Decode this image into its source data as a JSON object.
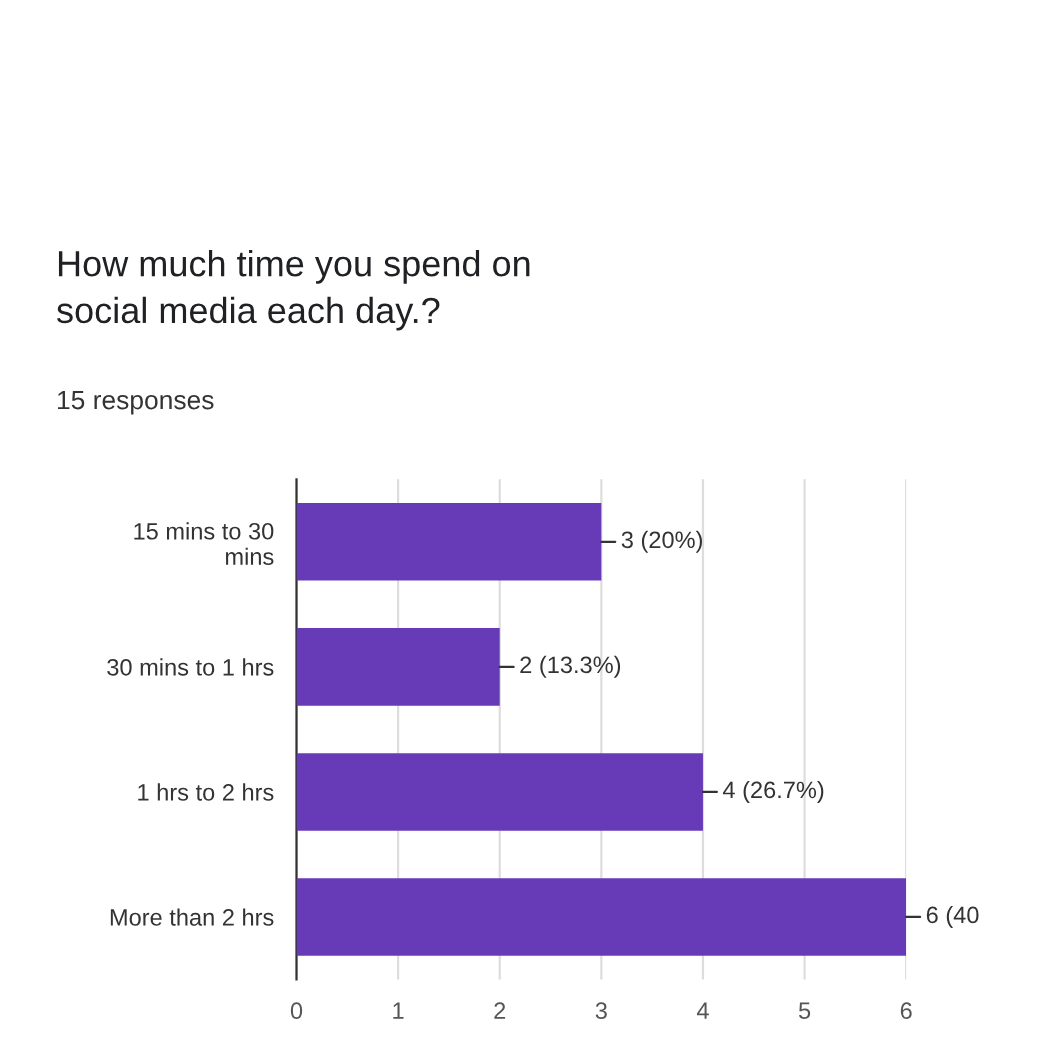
{
  "chart_data": {
    "type": "bar",
    "orientation": "horizontal",
    "title": "How much time you spend on\nsocial media each day.?",
    "subtitle": "15 responses",
    "categories": [
      "15 mins to 30\nmins",
      "30 mins to 1 hrs",
      "1 hrs to 2 hrs",
      "More than 2 hrs"
    ],
    "values": [
      3,
      2,
      4,
      6
    ],
    "color": "#673ab7",
    "value_labels": [
      "3 (20%)",
      "2 (13.3%)",
      "4 (26.7%)",
      "6 (40"
    ],
    "xlim": [
      0,
      6
    ],
    "xticks": [
      0,
      1,
      2,
      3,
      4,
      5,
      6
    ],
    "grid": "x"
  }
}
